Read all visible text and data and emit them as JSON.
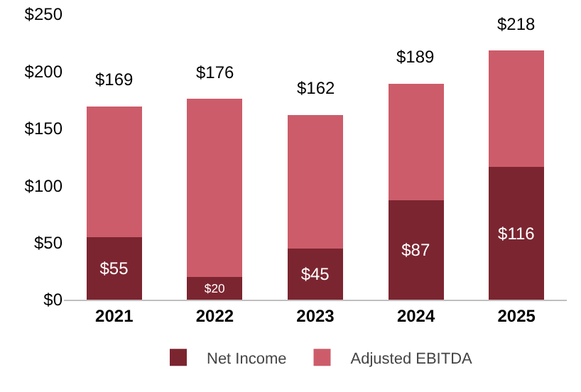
{
  "chart_data": {
    "type": "bar",
    "stacked": true,
    "categories": [
      "2021",
      "2022",
      "2023",
      "2024",
      "2025"
    ],
    "series": [
      {
        "name": "Net Income",
        "color": "#7b2530",
        "values": [
          55,
          20,
          45,
          87,
          116
        ],
        "value_labels": [
          "$55",
          "$20",
          "$45",
          "$87",
          "$116"
        ]
      },
      {
        "name": "Adjusted EBITDA",
        "color": "#cd5c6a",
        "values": [
          114,
          156,
          117,
          102,
          102
        ]
      }
    ],
    "totals": [
      "$169",
      "$176",
      "$162",
      "$189",
      "$218"
    ],
    "ylim": [
      0,
      250
    ],
    "yticks": [
      {
        "value": 0,
        "label": "$0"
      },
      {
        "value": 50,
        "label": "$50"
      },
      {
        "value": 100,
        "label": "$100"
      },
      {
        "value": 150,
        "label": "$150"
      },
      {
        "value": 200,
        "label": "$200"
      },
      {
        "value": 250,
        "label": "$250"
      }
    ],
    "grid": false,
    "legend": "bottom"
  }
}
